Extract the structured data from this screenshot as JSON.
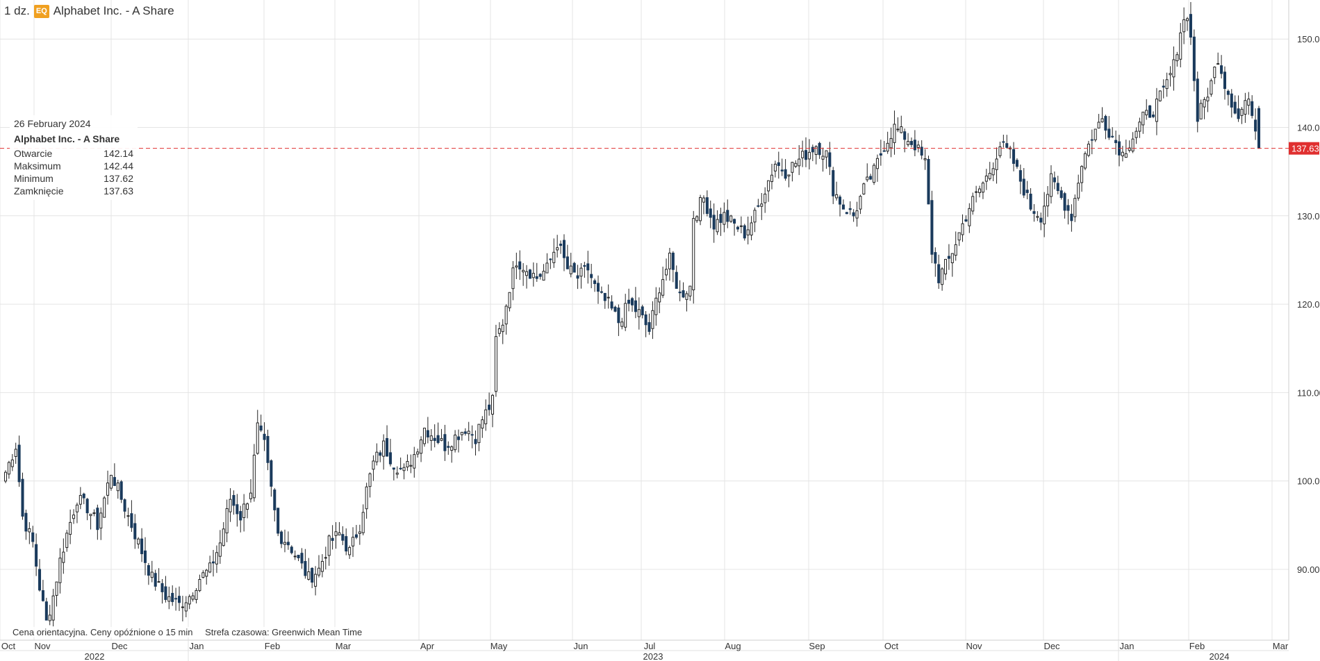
{
  "header": {
    "interval": "1 dz.",
    "badge": "EQ",
    "instrument": "Alphabet Inc. - A Share"
  },
  "tooltip": {
    "date": "26 February 2024",
    "name": "Alphabet Inc. - A Share",
    "rows": [
      {
        "label": "Otwarcie",
        "value": "142.14"
      },
      {
        "label": "Maksimum",
        "value": "142.44"
      },
      {
        "label": "Minimum",
        "value": "137.62"
      },
      {
        "label": "Zamknięcie",
        "value": "137.63"
      }
    ]
  },
  "footer": {
    "note": "Cena orientacyjna. Ceny opóźnione o 15 min",
    "timezone": "Strefa czasowa: Greenwich Mean Time"
  },
  "colors": {
    "down": "#1a3a5c",
    "up_fill": "#ffffff",
    "wick": "#222222",
    "grid": "#e4e4e4",
    "price_line": "#e03030",
    "price_label_bg": "#e03030"
  },
  "chart_data": {
    "type": "candlestick",
    "y_ticks": [
      90,
      100,
      110,
      120,
      130,
      140,
      150
    ],
    "ylim": [
      84,
      155
    ],
    "last_price": 137.63,
    "last_price_label": "137.63",
    "months": [
      "Oct",
      "Nov",
      "Dec",
      "Jan",
      "Feb",
      "Mar",
      "Apr",
      "May",
      "Jun",
      "Jul",
      "Aug",
      "Sep",
      "Oct",
      "Nov",
      "Dec",
      "Jan",
      "Feb",
      "Mar"
    ],
    "years": [
      "2022",
      "2023",
      "2024"
    ],
    "anchors": [
      [
        0,
        101
      ],
      [
        3,
        104
      ],
      [
        5,
        96
      ],
      [
        8,
        93
      ],
      [
        10,
        88
      ],
      [
        12,
        84
      ],
      [
        14,
        87
      ],
      [
        16,
        91
      ],
      [
        18,
        94
      ],
      [
        21,
        98
      ],
      [
        24,
        97
      ],
      [
        27,
        95
      ],
      [
        31,
        101
      ],
      [
        33,
        99
      ],
      [
        36,
        96
      ],
      [
        39,
        93
      ],
      [
        43,
        89
      ],
      [
        47,
        87
      ],
      [
        51,
        86
      ],
      [
        54,
        87
      ],
      [
        57,
        89
      ],
      [
        60,
        90
      ],
      [
        63,
        93
      ],
      [
        66,
        98
      ],
      [
        69,
        96
      ],
      [
        72,
        99
      ],
      [
        74,
        106
      ],
      [
        76,
        104
      ],
      [
        78,
        99
      ],
      [
        80,
        94
      ],
      [
        83,
        93
      ],
      [
        86,
        91
      ],
      [
        89,
        89
      ],
      [
        92,
        90
      ],
      [
        95,
        93
      ],
      [
        98,
        94
      ],
      [
        101,
        92
      ],
      [
        104,
        95
      ],
      [
        106,
        99
      ],
      [
        108,
        102
      ],
      [
        111,
        104
      ],
      [
        114,
        102
      ],
      [
        117,
        101
      ],
      [
        120,
        103
      ],
      [
        123,
        106
      ],
      [
        126,
        105
      ],
      [
        129,
        104
      ],
      [
        132,
        105
      ],
      [
        135,
        106
      ],
      [
        138,
        105
      ],
      [
        140,
        107
      ],
      [
        143,
        109
      ],
      [
        144,
        116
      ],
      [
        146,
        118
      ],
      [
        148,
        122
      ],
      [
        150,
        125
      ],
      [
        153,
        124
      ],
      [
        156,
        123
      ],
      [
        159,
        124
      ],
      [
        162,
        127
      ],
      [
        165,
        124
      ],
      [
        168,
        123
      ],
      [
        171,
        124
      ],
      [
        174,
        121
      ],
      [
        177,
        120
      ],
      [
        180,
        118
      ],
      [
        183,
        120
      ],
      [
        186,
        119
      ],
      [
        189,
        117
      ],
      [
        192,
        122
      ],
      [
        195,
        125
      ],
      [
        198,
        121
      ],
      [
        201,
        122
      ],
      [
        202,
        130
      ],
      [
        205,
        132
      ],
      [
        208,
        129
      ],
      [
        211,
        130
      ],
      [
        214,
        129
      ],
      [
        217,
        128
      ],
      [
        220,
        130
      ],
      [
        223,
        133
      ],
      [
        226,
        136
      ],
      [
        229,
        135
      ],
      [
        232,
        136
      ],
      [
        235,
        137
      ],
      [
        238,
        138
      ],
      [
        241,
        137
      ],
      [
        243,
        133
      ],
      [
        246,
        131
      ],
      [
        249,
        130
      ],
      [
        252,
        133
      ],
      [
        255,
        135
      ],
      [
        258,
        138
      ],
      [
        261,
        140
      ],
      [
        264,
        139
      ],
      [
        267,
        138
      ],
      [
        270,
        136
      ],
      [
        272,
        126
      ],
      [
        274,
        123
      ],
      [
        277,
        125
      ],
      [
        280,
        128
      ],
      [
        283,
        131
      ],
      [
        286,
        133
      ],
      [
        289,
        135
      ],
      [
        292,
        138
      ],
      [
        295,
        137
      ],
      [
        298,
        134
      ],
      [
        301,
        131
      ],
      [
        304,
        130
      ],
      [
        307,
        134
      ],
      [
        310,
        132
      ],
      [
        313,
        130
      ],
      [
        316,
        136
      ],
      [
        319,
        139
      ],
      [
        322,
        141
      ],
      [
        325,
        139
      ],
      [
        328,
        137
      ],
      [
        331,
        139
      ],
      [
        334,
        141
      ],
      [
        337,
        142
      ],
      [
        340,
        144
      ],
      [
        343,
        147
      ],
      [
        345,
        151
      ],
      [
        347,
        153
      ],
      [
        348,
        150
      ],
      [
        350,
        141
      ],
      [
        352,
        143
      ],
      [
        354,
        145
      ],
      [
        356,
        148
      ],
      [
        358,
        145
      ],
      [
        360,
        143
      ],
      [
        362,
        141
      ],
      [
        364,
        143
      ],
      [
        366,
        142
      ],
      [
        368,
        137.63
      ]
    ]
  }
}
